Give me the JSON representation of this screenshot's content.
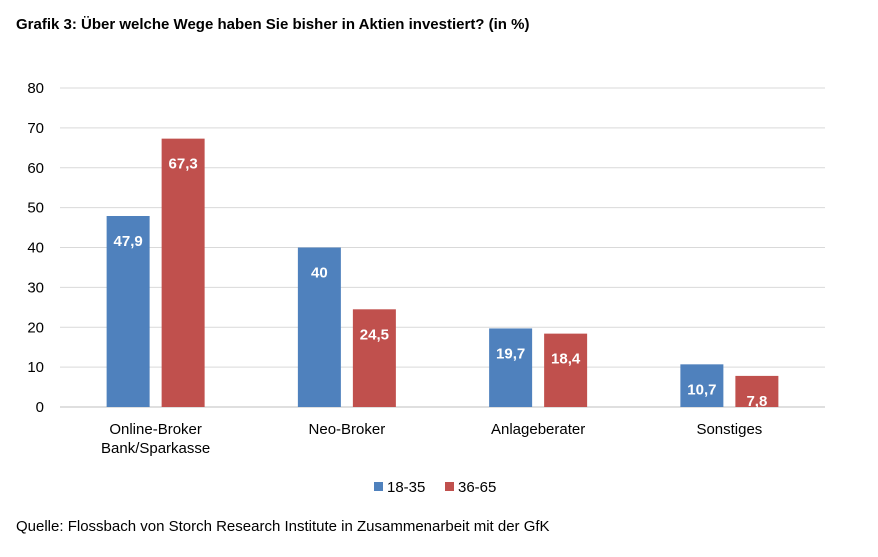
{
  "title": "Grafik 3: Über welche Wege haben Sie bisher in Aktien investiert? (in %)",
  "source": "Quelle: Flossbach von Storch Research Institute in Zusammenarbeit mit der GfK",
  "chart_data": {
    "type": "bar",
    "categories": [
      [
        "Online-Broker",
        "Bank/Sparkasse"
      ],
      [
        "Neo-Broker"
      ],
      [
        "Anlageberater"
      ],
      [
        "Sonstiges"
      ]
    ],
    "series": [
      {
        "name": "18-35",
        "color": "#4f81bd",
        "values": [
          47.9,
          40,
          19.7,
          10.7
        ],
        "labels": [
          "47,9",
          "40",
          "19,7",
          "10,7"
        ]
      },
      {
        "name": "36-65",
        "color": "#c0504d",
        "values": [
          67.3,
          24.5,
          18.4,
          7.8
        ],
        "labels": [
          "67,3",
          "24,5",
          "18,4",
          "7,8"
        ]
      }
    ],
    "ylim": [
      0,
      80
    ],
    "yticks": [
      0,
      10,
      20,
      30,
      40,
      50,
      60,
      70,
      80
    ],
    "grid": true,
    "legend": "bottom"
  }
}
